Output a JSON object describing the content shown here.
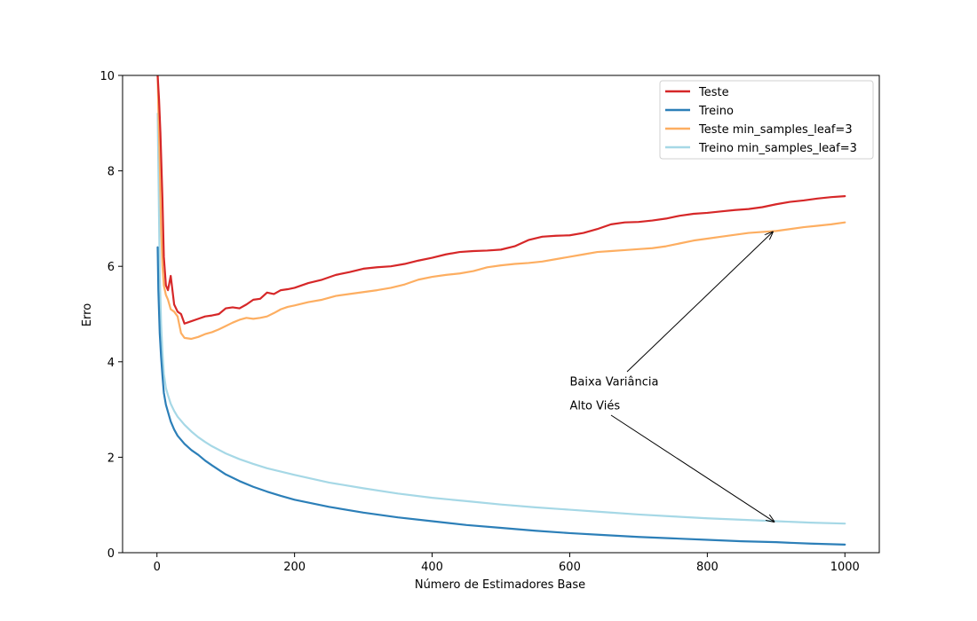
{
  "chart_data": {
    "type": "line",
    "xlabel": "Número de Estimadores Base",
    "ylabel": "Erro",
    "xlim": [
      -50,
      1050
    ],
    "ylim": [
      0,
      10
    ],
    "xticks": [
      0,
      200,
      400,
      600,
      800,
      1000
    ],
    "yticks": [
      0,
      2,
      4,
      6,
      8,
      10
    ],
    "grid": false,
    "legend_position": "top-right",
    "series": [
      {
        "name": "Teste",
        "color": "#d62728",
        "x": [
          1,
          3,
          5,
          8,
          10,
          13,
          16,
          20,
          25,
          30,
          35,
          40,
          50,
          60,
          70,
          80,
          90,
          100,
          110,
          120,
          130,
          140,
          150,
          160,
          170,
          180,
          190,
          200,
          220,
          240,
          260,
          280,
          300,
          320,
          340,
          360,
          380,
          400,
          420,
          440,
          460,
          480,
          500,
          520,
          540,
          560,
          580,
          600,
          620,
          640,
          660,
          680,
          700,
          720,
          740,
          760,
          780,
          800,
          820,
          840,
          860,
          880,
          900,
          920,
          940,
          960,
          980,
          1000
        ],
        "y": [
          10.0,
          9.5,
          8.8,
          7.4,
          6.2,
          5.6,
          5.5,
          5.8,
          5.2,
          5.05,
          5.0,
          4.8,
          4.85,
          4.9,
          4.95,
          4.97,
          5.0,
          5.12,
          5.14,
          5.12,
          5.2,
          5.3,
          5.32,
          5.45,
          5.42,
          5.5,
          5.52,
          5.55,
          5.65,
          5.72,
          5.82,
          5.88,
          5.95,
          5.98,
          6.0,
          6.05,
          6.12,
          6.18,
          6.25,
          6.3,
          6.32,
          6.33,
          6.35,
          6.42,
          6.55,
          6.62,
          6.64,
          6.65,
          6.7,
          6.78,
          6.88,
          6.92,
          6.93,
          6.96,
          7.0,
          7.06,
          7.1,
          7.12,
          7.15,
          7.18,
          7.2,
          7.24,
          7.3,
          7.35,
          7.38,
          7.42,
          7.45,
          7.47
        ]
      },
      {
        "name": "Treino",
        "color": "#2c7fb8",
        "x": [
          1,
          2,
          4,
          6,
          8,
          10,
          13,
          16,
          20,
          25,
          30,
          40,
          50,
          60,
          70,
          80,
          100,
          120,
          140,
          160,
          180,
          200,
          250,
          300,
          350,
          400,
          450,
          500,
          550,
          600,
          650,
          700,
          750,
          800,
          850,
          900,
          950,
          1000
        ],
        "y": [
          6.4,
          5.5,
          4.6,
          4.1,
          3.7,
          3.35,
          3.1,
          2.95,
          2.75,
          2.58,
          2.45,
          2.28,
          2.15,
          2.05,
          1.93,
          1.83,
          1.64,
          1.5,
          1.38,
          1.28,
          1.19,
          1.11,
          0.96,
          0.84,
          0.74,
          0.66,
          0.58,
          0.52,
          0.46,
          0.41,
          0.37,
          0.33,
          0.3,
          0.27,
          0.24,
          0.22,
          0.19,
          0.17
        ]
      },
      {
        "name": "Teste min_samples_leaf=3",
        "color": "#fdae61",
        "x": [
          1,
          2,
          4,
          6,
          8,
          10,
          13,
          16,
          20,
          25,
          30,
          35,
          40,
          50,
          60,
          70,
          80,
          90,
          100,
          110,
          120,
          130,
          140,
          150,
          160,
          170,
          180,
          190,
          200,
          220,
          240,
          260,
          280,
          300,
          320,
          340,
          360,
          380,
          400,
          420,
          440,
          460,
          480,
          500,
          520,
          540,
          560,
          580,
          600,
          620,
          640,
          660,
          680,
          700,
          720,
          740,
          760,
          780,
          800,
          820,
          840,
          860,
          880,
          900,
          920,
          940,
          960,
          980,
          1000
        ],
        "y": [
          10.0,
          9.3,
          8.2,
          6.8,
          6.0,
          5.6,
          5.4,
          5.3,
          5.1,
          5.05,
          4.95,
          4.6,
          4.5,
          4.48,
          4.52,
          4.58,
          4.62,
          4.68,
          4.75,
          4.82,
          4.88,
          4.92,
          4.9,
          4.92,
          4.95,
          5.02,
          5.1,
          5.15,
          5.18,
          5.25,
          5.3,
          5.38,
          5.42,
          5.46,
          5.5,
          5.55,
          5.62,
          5.72,
          5.78,
          5.82,
          5.85,
          5.9,
          5.98,
          6.02,
          6.05,
          6.07,
          6.1,
          6.15,
          6.2,
          6.25,
          6.3,
          6.32,
          6.34,
          6.36,
          6.38,
          6.42,
          6.48,
          6.54,
          6.58,
          6.62,
          6.66,
          6.7,
          6.72,
          6.74,
          6.78,
          6.82,
          6.85,
          6.88,
          6.92
        ]
      },
      {
        "name": "Treino min_samples_leaf=3",
        "color": "#a6d8e6",
        "x": [
          1,
          2,
          4,
          6,
          8,
          10,
          13,
          16,
          20,
          25,
          30,
          40,
          50,
          60,
          70,
          80,
          100,
          120,
          140,
          160,
          180,
          200,
          250,
          300,
          350,
          400,
          450,
          500,
          550,
          600,
          650,
          700,
          750,
          800,
          850,
          900,
          950,
          1000
        ],
        "y": [
          9.2,
          8.1,
          5.9,
          4.8,
          4.2,
          3.75,
          3.45,
          3.3,
          3.12,
          2.97,
          2.85,
          2.68,
          2.54,
          2.42,
          2.32,
          2.23,
          2.08,
          1.96,
          1.86,
          1.77,
          1.7,
          1.63,
          1.47,
          1.35,
          1.24,
          1.15,
          1.08,
          1.01,
          0.95,
          0.9,
          0.85,
          0.8,
          0.76,
          0.72,
          0.69,
          0.66,
          0.63,
          0.61
        ]
      }
    ],
    "annotations": [
      {
        "text": "Baixa Variância",
        "text_x": 600,
        "text_y": 3.5,
        "arrow_to_x": 895,
        "arrow_to_y": 6.72
      },
      {
        "text": "Alto Viés",
        "text_x": 600,
        "text_y": 3.0,
        "arrow_to_x": 897,
        "arrow_to_y": 0.65
      }
    ]
  }
}
